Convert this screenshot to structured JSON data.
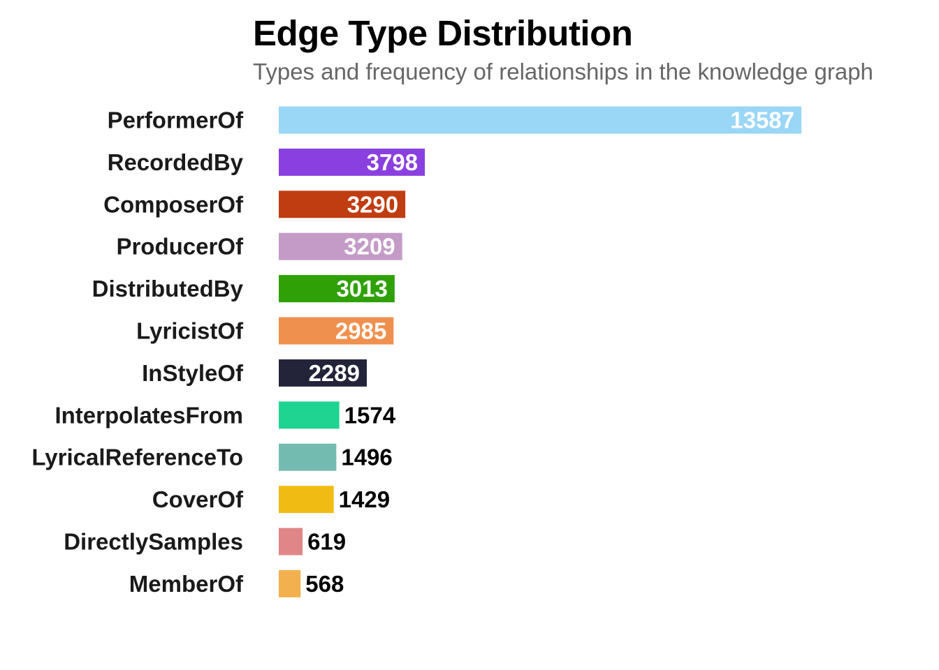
{
  "chart_data": {
    "type": "bar",
    "orientation": "horizontal",
    "title": "Edge Type Distribution",
    "subtitle": "Types and frequency of relationships in the knowledge graph",
    "xlabel": "",
    "ylabel": "",
    "grid": false,
    "legend": "none",
    "xlim": [
      0,
      13587
    ],
    "categories": [
      "PerformerOf",
      "RecordedBy",
      "ComposerOf",
      "ProducerOf",
      "DistributedBy",
      "LyricistOf",
      "InStyleOf",
      "InterpolatesFrom",
      "LyricalReferenceTo",
      "CoverOf",
      "DirectlySamples",
      "MemberOf"
    ],
    "values": [
      13587,
      3798,
      3290,
      3209,
      3013,
      2985,
      2289,
      1574,
      1496,
      1429,
      619,
      568
    ],
    "colors": [
      "#9ad6f6",
      "#8a3fe0",
      "#bf3d10",
      "#c49bc6",
      "#2fa106",
      "#f0904e",
      "#23243a",
      "#1fd491",
      "#73bbb0",
      "#f0bb13",
      "#e08588",
      "#f2b04f"
    ],
    "value_label_inside_color": "#ffffff",
    "value_label_outside_color": "#000000"
  }
}
